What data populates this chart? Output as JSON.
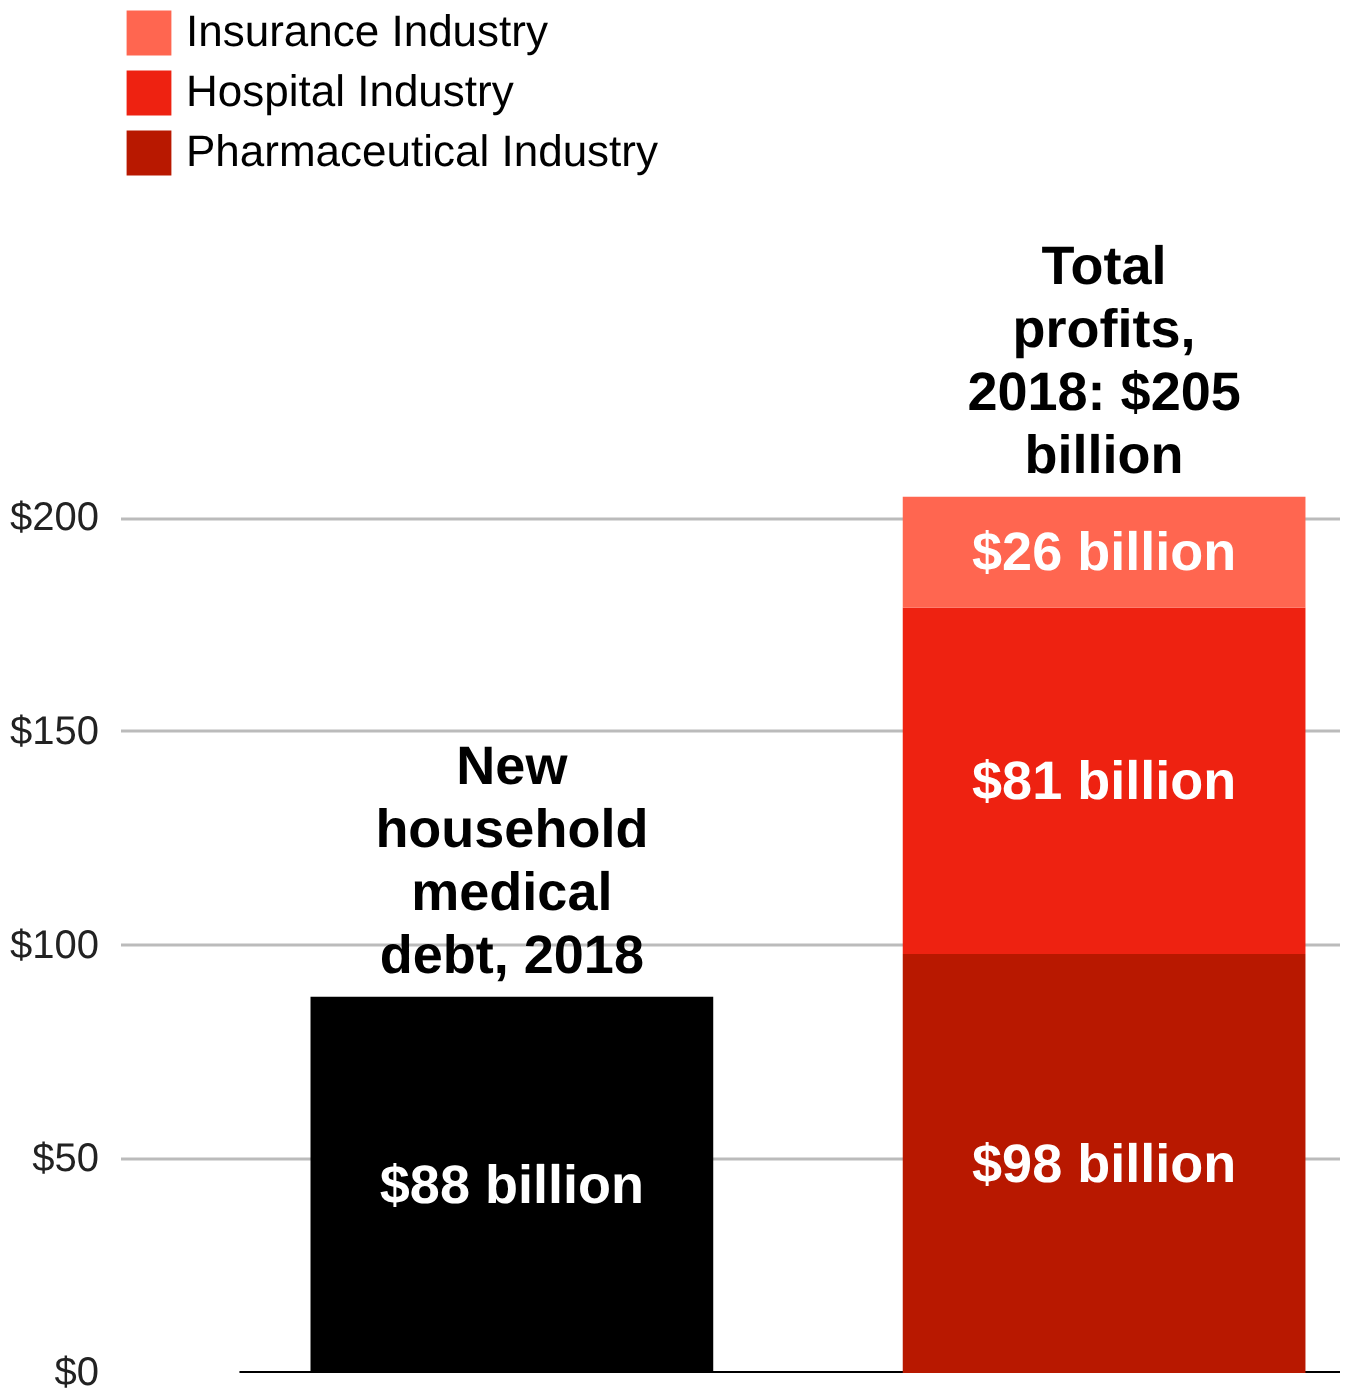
{
  "chart_data": {
    "type": "bar",
    "stacked": true,
    "categories": [
      null,
      null
    ],
    "series": [
      {
        "color": "#000000",
        "values": [
          88,
          null
        ],
        "value_labels": [
          "$88 billion",
          null
        ]
      },
      {
        "name": "Pharmaceutical Industry",
        "color": "#b81800",
        "values": [
          null,
          98
        ],
        "value_labels": [
          null,
          "$98 billion"
        ]
      },
      {
        "name": "Hospital Industry",
        "color": "#ee2211",
        "values": [
          null,
          81
        ],
        "value_labels": [
          null,
          "$81 billion"
        ]
      },
      {
        "name": "Insurance Industry",
        "color": "#ff6650",
        "values": [
          null,
          26
        ],
        "value_labels": [
          null,
          "$26 billion"
        ]
      }
    ],
    "ylim": [
      0,
      320
    ],
    "yticks": [
      {
        "value": 0,
        "label": "$0"
      },
      {
        "value": 50,
        "label": "$50"
      },
      {
        "value": 100,
        "label": "$100"
      },
      {
        "value": 150,
        "label": "$150"
      },
      {
        "value": 200,
        "label": "$200"
      }
    ],
    "annotations": [
      "New household medical debt, 2018",
      "Total profits, 2018: $205 billion"
    ],
    "grid": "y",
    "legend": "top left"
  }
}
